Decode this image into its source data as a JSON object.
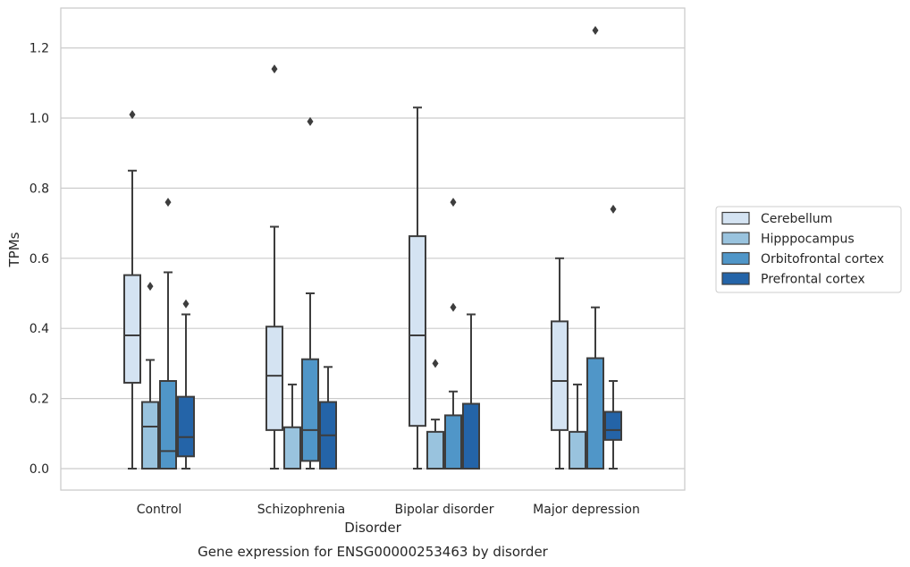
{
  "caption": "Gene expression for ENSG00000253463 by disorder",
  "chart_data": {
    "type": "box",
    "xlabel": "Disorder",
    "ylabel": "TPMs",
    "ylim": [
      -0.06,
      1.32
    ],
    "yticks": [
      0.0,
      0.2,
      0.4,
      0.6,
      0.8,
      1.0,
      1.2
    ],
    "ytick_labels": [
      "0.0",
      "0.2",
      "0.4",
      "0.6",
      "0.8",
      "1.0",
      "1.2"
    ],
    "grid": "horizontal",
    "legend_position": "right",
    "categories": [
      "Control",
      "Schizophrenia",
      "Bipolar disorder",
      "Major depression"
    ],
    "series": [
      {
        "name": "Cerebellum",
        "color": "#d4e3f2",
        "boxes": [
          {
            "whislo": 0.0,
            "q1": 0.245,
            "med": 0.38,
            "q3": 0.552,
            "whishi": 0.85,
            "fliers": [
              1.01
            ]
          },
          {
            "whislo": 0.0,
            "q1": 0.11,
            "med": 0.265,
            "q3": 0.405,
            "whishi": 0.69,
            "fliers": [
              1.14
            ]
          },
          {
            "whislo": 0.0,
            "q1": 0.122,
            "med": 0.38,
            "q3": 0.663,
            "whishi": 1.03,
            "fliers": []
          },
          {
            "whislo": 0.0,
            "q1": 0.11,
            "med": 0.25,
            "q3": 0.42,
            "whishi": 0.6,
            "fliers": []
          }
        ]
      },
      {
        "name": "Hipppocampus",
        "color": "#99c3de",
        "boxes": [
          {
            "whislo": 0.0,
            "q1": 0.0,
            "med": 0.12,
            "q3": 0.19,
            "whishi": 0.31,
            "fliers": [
              0.52
            ]
          },
          {
            "whislo": 0.0,
            "q1": 0.0,
            "med": 0.0,
            "q3": 0.118,
            "whishi": 0.24,
            "fliers": []
          },
          {
            "whislo": 0.0,
            "q1": 0.0,
            "med": 0.0,
            "q3": 0.105,
            "whishi": 0.14,
            "fliers": [
              0.3
            ]
          },
          {
            "whislo": 0.0,
            "q1": 0.0,
            "med": 0.0,
            "q3": 0.105,
            "whishi": 0.24,
            "fliers": []
          }
        ]
      },
      {
        "name": "Orbitofrontal cortex",
        "color": "#5096c8",
        "boxes": [
          {
            "whislo": 0.0,
            "q1": 0.0,
            "med": 0.05,
            "q3": 0.25,
            "whishi": 0.56,
            "fliers": [
              0.76
            ]
          },
          {
            "whislo": 0.0,
            "q1": 0.022,
            "med": 0.11,
            "q3": 0.312,
            "whishi": 0.5,
            "fliers": [
              0.99
            ]
          },
          {
            "whislo": 0.0,
            "q1": 0.0,
            "med": 0.0,
            "q3": 0.152,
            "whishi": 0.22,
            "fliers": [
              0.46,
              0.76
            ]
          },
          {
            "whislo": 0.0,
            "q1": 0.0,
            "med": 0.0,
            "q3": 0.315,
            "whishi": 0.46,
            "fliers": [
              1.25
            ]
          }
        ]
      },
      {
        "name": "Prefrontal cortex",
        "color": "#2464a8",
        "boxes": [
          {
            "whislo": 0.0,
            "q1": 0.035,
            "med": 0.09,
            "q3": 0.205,
            "whishi": 0.44,
            "fliers": [
              0.47
            ]
          },
          {
            "whislo": 0.0,
            "q1": 0.0,
            "med": 0.095,
            "q3": 0.19,
            "whishi": 0.29,
            "fliers": []
          },
          {
            "whislo": 0.0,
            "q1": 0.0,
            "med": 0.0,
            "q3": 0.185,
            "whishi": 0.44,
            "fliers": []
          },
          {
            "whislo": 0.0,
            "q1": 0.082,
            "med": 0.11,
            "q3": 0.162,
            "whishi": 0.25,
            "fliers": [
              0.74
            ]
          }
        ]
      }
    ]
  }
}
